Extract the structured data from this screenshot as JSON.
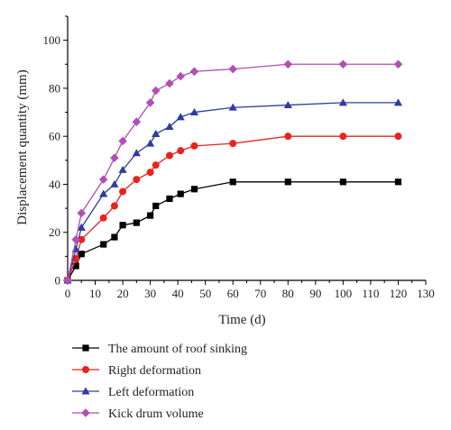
{
  "chart_data": {
    "type": "line",
    "xlabel": "Time (d)",
    "ylabel": "Displacement quantity (mm)",
    "xlim": [
      0,
      130
    ],
    "ylim": [
      0,
      110
    ],
    "xticks": [
      0,
      10,
      20,
      30,
      40,
      50,
      60,
      70,
      80,
      90,
      100,
      110,
      120,
      130
    ],
    "yticks": [
      0,
      20,
      40,
      60,
      80,
      100
    ],
    "grid": false,
    "legend_position": "below",
    "series": [
      {
        "name": "The amount of roof sinking",
        "color": "#000000",
        "marker": "square",
        "x": [
          0,
          3,
          5,
          13,
          17,
          20,
          25,
          30,
          32,
          37,
          41,
          46,
          60,
          80,
          100,
          120
        ],
        "y": [
          0,
          6,
          11,
          15,
          18,
          23,
          24,
          27,
          31,
          34,
          36,
          38,
          41,
          41,
          41,
          41
        ]
      },
      {
        "name": "Right deformation",
        "color": "#e8231f",
        "marker": "circle",
        "x": [
          0,
          3,
          5,
          13,
          17,
          20,
          25,
          30,
          32,
          37,
          41,
          46,
          60,
          80,
          100,
          120
        ],
        "y": [
          0,
          9,
          17,
          26,
          31,
          37,
          42,
          45,
          48,
          52,
          54,
          56,
          57,
          60,
          60,
          60
        ]
      },
      {
        "name": "Left deformation",
        "color": "#2e3d9e",
        "marker": "triangle",
        "x": [
          0,
          3,
          5,
          13,
          17,
          20,
          25,
          30,
          32,
          37,
          41,
          46,
          60,
          80,
          100,
          120
        ],
        "y": [
          0,
          13,
          22,
          36,
          40,
          46,
          53,
          57,
          61,
          64,
          68,
          70,
          72,
          73,
          74,
          74
        ]
      },
      {
        "name": "Kick drum volume",
        "color": "#b04fb4",
        "marker": "diamond",
        "x": [
          0,
          3,
          5,
          13,
          17,
          20,
          25,
          30,
          32,
          37,
          41,
          46,
          60,
          80,
          100,
          120
        ],
        "y": [
          0,
          17,
          28,
          42,
          51,
          58,
          66,
          74,
          79,
          82,
          85,
          87,
          88,
          90,
          90,
          90
        ]
      }
    ]
  }
}
